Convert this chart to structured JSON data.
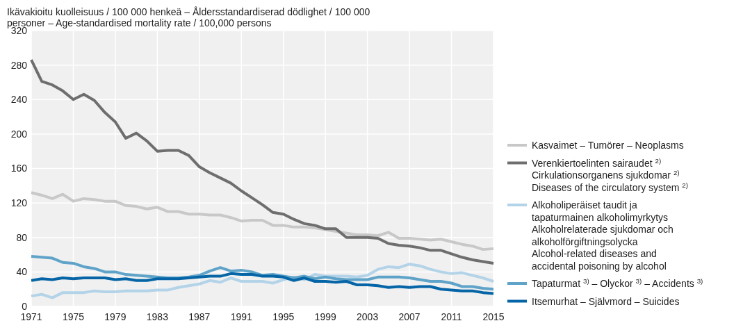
{
  "chart_data": {
    "type": "line",
    "title": "Ikävakioitu kuolleisuus / 100 000 henkeä – Åldersstandardiserad dödlighet / 100 000\npersoner – Age-standardised mortality rate / 100,000 persons",
    "x": [
      1971,
      1972,
      1973,
      1974,
      1975,
      1976,
      1977,
      1978,
      1979,
      1980,
      1981,
      1982,
      1983,
      1984,
      1985,
      1986,
      1987,
      1988,
      1989,
      1990,
      1991,
      1992,
      1993,
      1994,
      1995,
      1996,
      1997,
      1998,
      1999,
      2000,
      2001,
      2002,
      2003,
      2004,
      2005,
      2006,
      2007,
      2008,
      2009,
      2010,
      2011,
      2012,
      2013,
      2014,
      2015
    ],
    "xlim": [
      1971,
      2015
    ],
    "xticks": [
      1971,
      1975,
      1979,
      1983,
      1987,
      1991,
      1995,
      1999,
      2003,
      2007,
      2011,
      2015
    ],
    "ylim": [
      0,
      320
    ],
    "yticks": [
      0,
      40,
      80,
      120,
      160,
      200,
      240,
      280,
      320
    ],
    "grid": true,
    "legend": "right",
    "series": [
      {
        "name": "Kasvaimet – Tumörer – Neoplasms",
        "color": "#c8c8c8",
        "values": [
          132,
          129,
          125,
          130,
          122,
          125,
          124,
          122,
          122,
          117,
          116,
          113,
          115,
          110,
          110,
          107,
          107,
          106,
          106,
          103,
          99,
          100,
          100,
          94,
          94,
          92,
          92,
          91,
          89,
          87,
          85,
          83,
          83,
          82,
          86,
          79,
          79,
          78,
          77,
          78,
          75,
          72,
          70,
          66,
          67
        ]
      },
      {
        "name": "Verenkiertoelinten sairaudet $^{2)}$\nCirkulationsorganens sjukdomar $^{2)}$\nDiseases of the circulatory system $^{2)}$",
        "color": "#6e6e6e",
        "values": [
          286,
          261,
          257,
          250,
          240,
          246,
          239,
          225,
          214,
          195,
          201,
          192,
          180,
          181,
          181,
          175,
          162,
          155,
          149,
          143,
          134,
          126,
          118,
          109,
          107,
          101,
          96,
          94,
          90,
          90,
          80,
          80,
          80,
          79,
          73,
          71,
          70,
          68,
          65,
          65,
          61,
          57,
          54,
          52,
          50
        ]
      },
      {
        "name": "Alkoholiperäiset taudit ja\ntapaturmainen alkoholimyrkytys\nAlkoholrelaterade sjukdomar och\nalkoholförgiftningsolycka\nAlcohol-related diseases and\naccidental poisoning by alcohol",
        "color": "#b3d3e8",
        "values": [
          12,
          14,
          10,
          16,
          16,
          16,
          18,
          17,
          17,
          18,
          18,
          18,
          19,
          19,
          22,
          24,
          26,
          30,
          28,
          33,
          29,
          29,
          29,
          27,
          31,
          34,
          31,
          37,
          35,
          35,
          35,
          34,
          36,
          43,
          46,
          45,
          49,
          47,
          43,
          40,
          38,
          39,
          36,
          33,
          29
        ]
      },
      {
        "name": "Tapaturmat $^{3)}$ – Olyckor $^{3)}$ – Accidents $^{3)}$",
        "color": "#5fa3c9",
        "values": [
          58,
          57,
          56,
          51,
          50,
          46,
          44,
          40,
          40,
          37,
          36,
          35,
          34,
          33,
          33,
          34,
          36,
          41,
          45,
          41,
          42,
          40,
          36,
          37,
          35,
          33,
          35,
          32,
          34,
          32,
          31,
          31,
          31,
          34,
          34,
          34,
          33,
          31,
          29,
          29,
          27,
          23,
          23,
          21,
          20
        ]
      },
      {
        "name": "Itsemurhat – Självmord – Suicides",
        "color": "#0565a6",
        "values": [
          30,
          32,
          31,
          33,
          32,
          33,
          33,
          33,
          31,
          32,
          30,
          30,
          32,
          32,
          32,
          33,
          34,
          35,
          35,
          38,
          37,
          37,
          35,
          35,
          34,
          30,
          33,
          29,
          29,
          28,
          29,
          25,
          25,
          24,
          22,
          23,
          22,
          23,
          23,
          20,
          19,
          18,
          18,
          16,
          15
        ]
      }
    ]
  }
}
